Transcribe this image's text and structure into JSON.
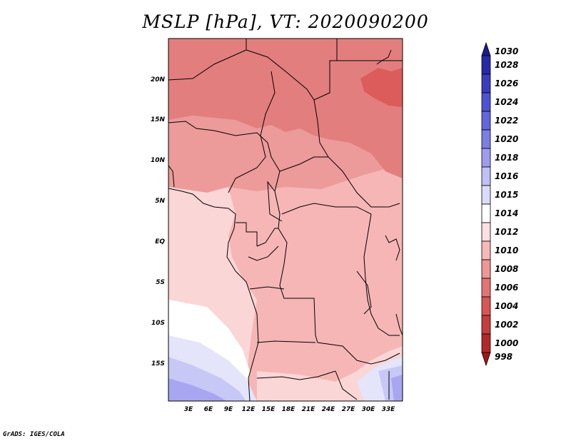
{
  "title": "MSLP [hPa], VT: 2020090200",
  "footer": "GrADS: IGES/COLA",
  "map": {
    "lat_labels": [
      "20N",
      "15N",
      "10N",
      "5N",
      "EQ",
      "5S",
      "10S",
      "15S"
    ],
    "lon_labels": [
      "3E",
      "6E",
      "9E",
      "12E",
      "15E",
      "18E",
      "21E",
      "24E",
      "27E",
      "30E",
      "33E"
    ]
  },
  "colorbar": {
    "levels": [
      "1030",
      "1028",
      "1026",
      "1024",
      "1022",
      "1020",
      "1018",
      "1016",
      "1015",
      "1014",
      "1012",
      "1010",
      "1008",
      "1006",
      "1004",
      "1002",
      "1000",
      "998"
    ],
    "colors": [
      "#1f1a8c",
      "#2828a8",
      "#3a3cc0",
      "#4d52d4",
      "#6466de",
      "#7e7ee6",
      "#9e9cf0",
      "#c0c0f6",
      "#dcdcfa",
      "#ffffff",
      "#fde0e0",
      "#f8b8b8",
      "#ef9696",
      "#e47474",
      "#d85656",
      "#c83c3c",
      "#b42828",
      "#a01818"
    ]
  },
  "field_colors": {
    "p1004": "#dc5c5c",
    "p1006": "#e37e7e",
    "p1008": "#ec9a9a",
    "p1010": "#f6b6b6",
    "p1012": "#fbd6d6",
    "p1014": "#ffffff",
    "p1015": "#e4e4fb",
    "p1016": "#c8c8f6",
    "p1018": "#a8a6f0"
  }
}
